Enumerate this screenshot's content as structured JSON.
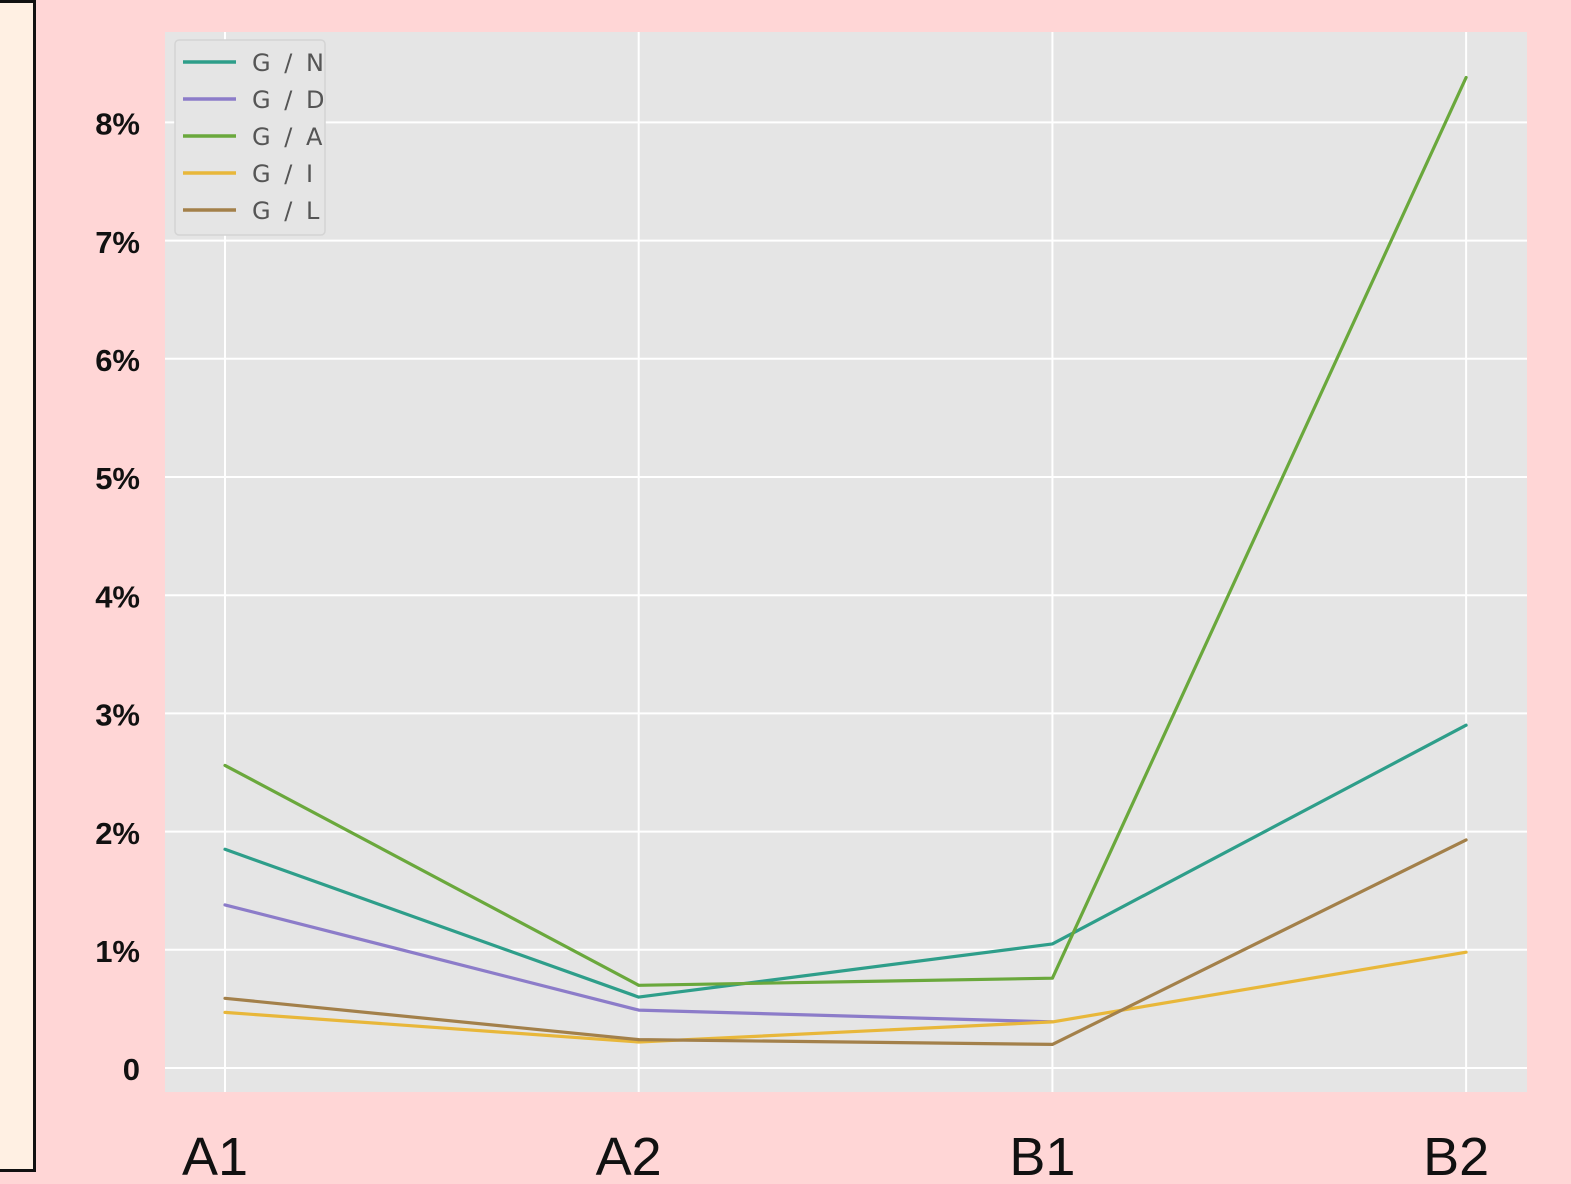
{
  "chart_data": {
    "type": "line",
    "title": "",
    "xlabel": "",
    "ylabel": "",
    "categories": [
      "A1",
      "A2",
      "B1",
      "B2"
    ],
    "y_tick_labels": [
      "0",
      "1%",
      "2%",
      "3%",
      "4%",
      "5%",
      "6%",
      "7%",
      "8%"
    ],
    "y_tick_values": [
      0,
      1,
      2,
      3,
      4,
      5,
      6,
      7,
      8
    ],
    "ylim": [
      -0.2,
      8.75
    ],
    "grid": true,
    "legend_position": "top-left",
    "series": [
      {
        "name": "G / N",
        "color": "#2e9e8a",
        "values": [
          1.85,
          0.6,
          1.05,
          2.9
        ]
      },
      {
        "name": "G / D",
        "color": "#8c7cc9",
        "values": [
          1.38,
          0.49,
          0.39,
          null
        ]
      },
      {
        "name": "G / A",
        "color": "#6aa83c",
        "values": [
          2.56,
          0.7,
          0.76,
          8.38
        ]
      },
      {
        "name": "G / I",
        "color": "#e8b73a",
        "values": [
          0.47,
          0.22,
          0.39,
          0.98
        ]
      },
      {
        "name": "G / L",
        "color": "#a3804a",
        "values": [
          0.59,
          0.24,
          0.2,
          1.93
        ]
      }
    ]
  }
}
